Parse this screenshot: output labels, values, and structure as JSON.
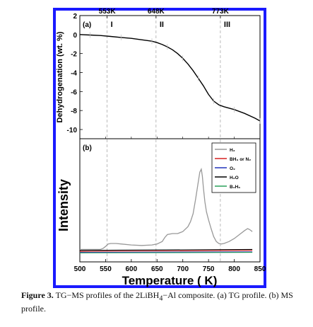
{
  "chart_data": [
    {
      "type": "line",
      "panel_label": "(a)",
      "ylabel": "Dehydrogenation (wt. %)",
      "ylim": [
        -10,
        2
      ],
      "xlim": [
        500,
        850
      ],
      "yticks": [
        "2",
        "0",
        "-2",
        "-4",
        "-6",
        "-8",
        "-10"
      ],
      "top_ticks": [
        "553K",
        "648K",
        "773K"
      ],
      "regions": [
        "I",
        "II",
        "III"
      ],
      "vlines": [
        553,
        648,
        773
      ],
      "series": [
        {
          "color": "#000000",
          "x": [
            500,
            520,
            540,
            560,
            580,
            600,
            620,
            640,
            650,
            660,
            670,
            680,
            690,
            700,
            710,
            720,
            730,
            740,
            750,
            760,
            770,
            780,
            800,
            820,
            840,
            850
          ],
          "y": [
            0.0,
            -0.05,
            -0.1,
            -0.2,
            -0.3,
            -0.4,
            -0.55,
            -0.7,
            -0.85,
            -1.05,
            -1.3,
            -1.6,
            -2.0,
            -2.5,
            -3.1,
            -3.8,
            -4.6,
            -5.4,
            -6.3,
            -7.0,
            -7.4,
            -7.6,
            -7.9,
            -8.3,
            -8.8,
            -9.1
          ]
        }
      ]
    },
    {
      "type": "line",
      "panel_label": "(b)",
      "ylabel": "Intensity",
      "xlabel": "Temperature ( K)",
      "xlim": [
        500,
        850
      ],
      "xticks": [
        "500",
        "550",
        "600",
        "650",
        "700",
        "750",
        "800",
        "850"
      ],
      "legend_position": "top-right",
      "series": [
        {
          "name": "H₂",
          "color": "#999999",
          "x": [
            500,
            510,
            520,
            530,
            540,
            545,
            550,
            555,
            560,
            570,
            580,
            600,
            620,
            640,
            650,
            660,
            665,
            670,
            680,
            690,
            700,
            710,
            715,
            720,
            725,
            730,
            733,
            736,
            738,
            740,
            743,
            746,
            750,
            755,
            760,
            765,
            770,
            775,
            780,
            790,
            800,
            810,
            820,
            826,
            830,
            835
          ],
          "y": [
            0.04,
            0.04,
            0.04,
            0.04,
            0.04,
            0.05,
            0.07,
            0.095,
            0.1,
            0.1,
            0.095,
            0.085,
            0.08,
            0.085,
            0.095,
            0.12,
            0.16,
            0.19,
            0.2,
            0.2,
            0.22,
            0.27,
            0.32,
            0.4,
            0.55,
            0.72,
            0.82,
            0.85,
            0.78,
            0.66,
            0.52,
            0.42,
            0.34,
            0.25,
            0.17,
            0.12,
            0.1,
            0.095,
            0.1,
            0.12,
            0.15,
            0.19,
            0.23,
            0.25,
            0.24,
            0.22
          ]
        },
        {
          "name": "BH₃ or N₂",
          "color": "#d62020",
          "x": [
            500,
            835
          ],
          "y": [
            0.02,
            0.03
          ]
        },
        {
          "name": "O₂",
          "color": "#2233bb",
          "x": [
            500,
            835
          ],
          "y": [
            0.01,
            0.015
          ]
        },
        {
          "name": "H₂O",
          "color": "#000000",
          "x": [
            500,
            835
          ],
          "y": [
            0.03,
            0.04
          ]
        },
        {
          "name": "B₂H₆",
          "color": "#2aa05a",
          "x": [
            500,
            835
          ],
          "y": [
            0.005,
            0.01
          ]
        }
      ]
    }
  ],
  "caption": {
    "label": "Figure 3.",
    "text_1": "TG−MS profiles of the 2LiBH",
    "sub_1": "4",
    "text_2": "−Al composite. (a) TG profile. (b) MS profile."
  },
  "colors": {
    "frame": "#1a1aff",
    "grid_dash": "#aaaaaa"
  }
}
